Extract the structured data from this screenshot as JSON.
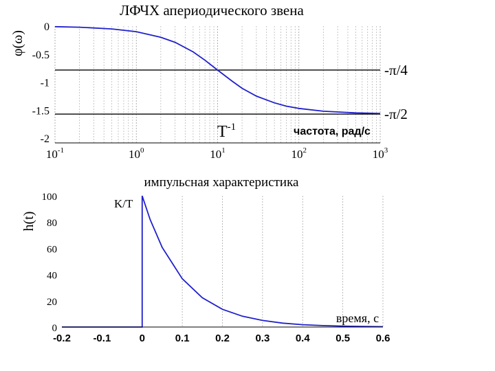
{
  "chart_data": [
    {
      "type": "line",
      "title": "ЛФЧХ апериодического звена",
      "ylabel": "φ(ω)",
      "xlabel": "частота, рад/с",
      "x_scale": "log",
      "xlim": [
        0.1,
        1000
      ],
      "ylim": [
        -2,
        0
      ],
      "x_tick_labels": [
        {
          "base": "10",
          "exp": "-1"
        },
        {
          "base": "10",
          "exp": "0"
        },
        {
          "base": "10",
          "exp": "1"
        },
        {
          "base": "10",
          "exp": "2"
        },
        {
          "base": "10",
          "exp": "3"
        }
      ],
      "y_tick_labels": [
        "0",
        "-0.5",
        "-1",
        "-1.5",
        "-2"
      ],
      "grid": "vertical log minor",
      "series": [
        {
          "color": "#1f1fcc",
          "x": [
            0.1,
            0.2,
            0.5,
            1,
            2,
            3,
            5,
            7,
            10,
            15,
            20,
            30,
            50,
            70,
            100,
            200,
            500,
            1000
          ],
          "y": [
            -0.01,
            -0.02,
            -0.05,
            -0.1,
            -0.2,
            -0.29,
            -0.46,
            -0.61,
            -0.785,
            -0.98,
            -1.11,
            -1.25,
            -1.37,
            -1.43,
            -1.47,
            -1.52,
            -1.55,
            -1.56
          ]
        }
      ],
      "reference_lines": [
        {
          "y": -0.785,
          "label": "-π/4"
        },
        {
          "y": -1.571,
          "label": "-π/2"
        }
      ],
      "annotation": {
        "base": "T",
        "exp": "-1",
        "x": 10
      }
    },
    {
      "type": "line",
      "title": "импульсная характеристика",
      "ylabel": "h(t)",
      "xlabel": "время, с",
      "xlim": [
        -0.2,
        0.6
      ],
      "ylim": [
        0,
        100
      ],
      "x_tick_labels": [
        "-0.2",
        "-0.1",
        "0",
        "0.1",
        "0.2",
        "0.3",
        "0.4",
        "0.5",
        "0.6"
      ],
      "y_tick_labels": [
        "0",
        "20",
        "40",
        "60",
        "80",
        "100"
      ],
      "grid": "vertical",
      "series": [
        {
          "color": "#1f1fcc",
          "x": [
            -0.2,
            0,
            0,
            0.02,
            0.05,
            0.1,
            0.15,
            0.2,
            0.25,
            0.3,
            0.35,
            0.4,
            0.45,
            0.5,
            0.55,
            0.6
          ],
          "y": [
            0,
            0,
            100,
            81.9,
            60.7,
            36.8,
            22.3,
            13.5,
            8.2,
            5.0,
            3.0,
            1.8,
            1.1,
            0.7,
            0.4,
            0.25
          ]
        }
      ],
      "annotation": {
        "text": "K/T",
        "x": 0,
        "y": 100
      }
    }
  ]
}
